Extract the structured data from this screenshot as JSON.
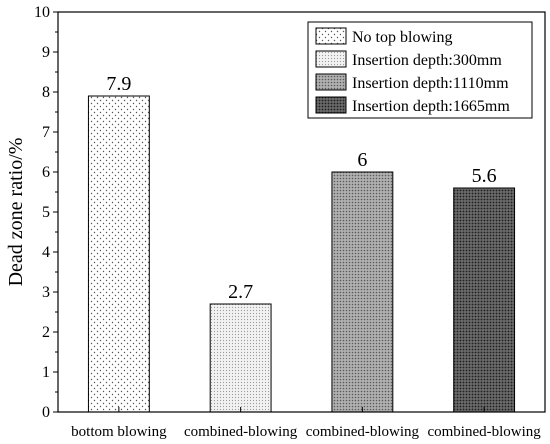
{
  "chart_data": {
    "type": "bar",
    "title": "",
    "xlabel": "",
    "ylabel": "Dead zone ratio/%",
    "ylim": [
      0,
      10
    ],
    "yticks": [
      0,
      1,
      2,
      3,
      4,
      5,
      6,
      7,
      8,
      9,
      10
    ],
    "grid": false,
    "legend_position": "top-right",
    "categories": [
      "bottom blowing",
      "combined-blowing",
      "combined-blowing",
      "combined-blowing"
    ],
    "series": [
      {
        "name": "No top blowing",
        "values": [
          7.9,
          null,
          null,
          null
        ],
        "label": "7.9"
      },
      {
        "name": "Insertion depth:300mm",
        "values": [
          null,
          2.7,
          null,
          null
        ],
        "label": "2.7"
      },
      {
        "name": "Insertion depth:1110mm",
        "values": [
          null,
          null,
          6,
          null
        ],
        "label": "6"
      },
      {
        "name": "Insertion depth:1665mm",
        "values": [
          null,
          null,
          null,
          5.6
        ],
        "label": "5.6"
      }
    ]
  }
}
